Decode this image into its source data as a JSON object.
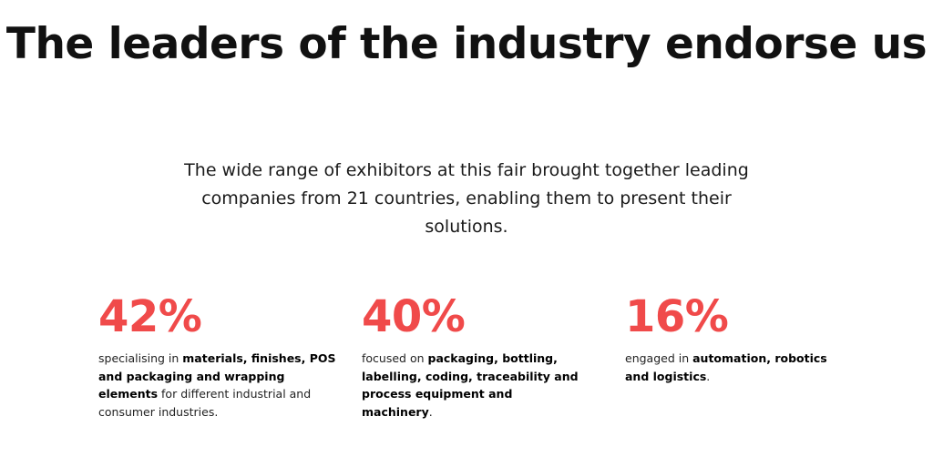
{
  "title": "The leaders of the industry endorse us",
  "subtitle": "The wide range of exhibitors at this fair brought together leading companies from 21 countries, enabling them to present their solutions.",
  "accent_color": "#f04a4a",
  "stats": [
    {
      "value": "42%",
      "segments": [
        {
          "text": "specialising in ",
          "bold": false
        },
        {
          "text": "materials, finishes, POS and packaging and wrapping elements",
          "bold": true
        },
        {
          "text": " for different industrial and consumer industries.",
          "bold": false
        }
      ]
    },
    {
      "value": "40%",
      "segments": [
        {
          "text": "focused on ",
          "bold": false
        },
        {
          "text": "packaging, bottling, labelling, coding, traceability and process equipment and machinery",
          "bold": true
        },
        {
          "text": ".",
          "bold": false
        }
      ]
    },
    {
      "value": "16%",
      "segments": [
        {
          "text": "engaged in ",
          "bold": false
        },
        {
          "text": "automation, robotics and logistics",
          "bold": true
        },
        {
          "text": ".",
          "bold": false
        }
      ]
    }
  ]
}
